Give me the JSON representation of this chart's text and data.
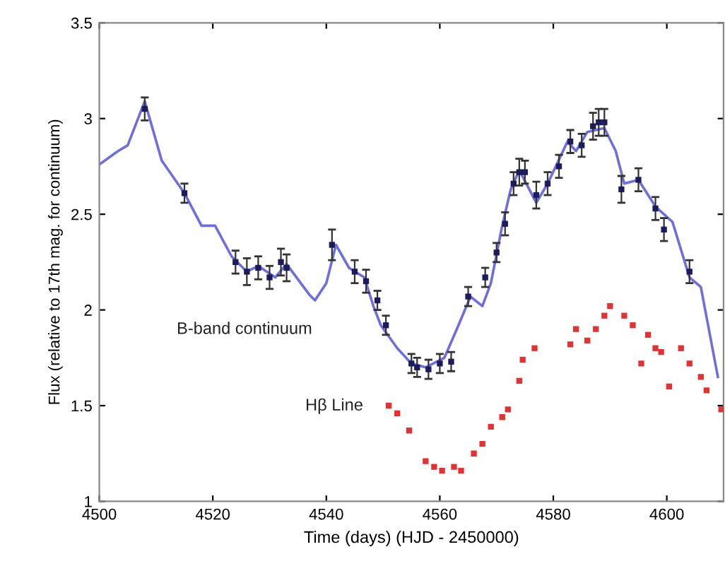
{
  "chart_data": {
    "type": "line",
    "xlabel": "Time (days) (HJD - 2450000)",
    "ylabel": "Flux (relative to 17th mag. for continuum)",
    "xlim": [
      4500,
      4610
    ],
    "xticks": [
      4500,
      4520,
      4540,
      4560,
      4580,
      4600
    ],
    "ylim": [
      1,
      3.5
    ],
    "yticks": [
      1,
      1.5,
      2,
      2.5,
      3,
      3.5
    ],
    "grid": false,
    "legend": false,
    "series": [
      {
        "name": "B-band continuum",
        "color": "#6f6fdc",
        "line_style": "solid",
        "marker": "none",
        "x": [
          4500,
          4503.3,
          4505,
          4508,
          4511,
          4515,
          4518,
          4520.4,
          4523.3,
          4526,
          4528,
          4531,
          4533,
          4537,
          4538,
          4540,
          4541.7,
          4544,
          4546.7,
          4548.3,
          4549.6,
          4552.5,
          4555,
          4557.5,
          4560.8,
          4563,
          4565.4,
          4567.5,
          4569,
          4571,
          4572.5,
          4574,
          4577,
          4579,
          4582.5,
          4584,
          4586,
          4589,
          4591,
          4592.5,
          4595,
          4598,
          4601,
          4604,
          4606,
          4609
        ],
        "values": [
          2.76,
          2.83,
          2.86,
          3.09,
          2.78,
          2.61,
          2.44,
          2.44,
          2.28,
          2.2,
          2.23,
          2.17,
          2.24,
          2.08,
          2.05,
          2.14,
          2.34,
          2.22,
          2.17,
          2.02,
          1.92,
          1.8,
          1.72,
          1.7,
          1.75,
          1.9,
          2.07,
          2.02,
          2.14,
          2.44,
          2.63,
          2.73,
          2.56,
          2.66,
          2.88,
          2.83,
          2.93,
          2.95,
          2.83,
          2.66,
          2.68,
          2.54,
          2.46,
          2.17,
          2.12,
          1.65
        ]
      },
      {
        "type": "scatter",
        "color": "#1c1c5a",
        "marker": "square",
        "x": [
          4508,
          4515,
          4524,
          4526,
          4528,
          4530,
          4532,
          4533,
          4541,
          4545,
          4547,
          4549,
          4550.5,
          4555,
          4556,
          4558,
          4560,
          4562,
          4565,
          4568,
          4570,
          4571.5,
          4573,
          4574,
          4575,
          4577,
          4579,
          4581,
          4583,
          4585,
          4587,
          4588,
          4589,
          4592,
          4595,
          4598,
          4599.5,
          4604
        ],
        "values": [
          3.05,
          2.61,
          2.25,
          2.2,
          2.22,
          2.17,
          2.25,
          2.22,
          2.34,
          2.2,
          2.15,
          2.05,
          1.92,
          1.72,
          1.7,
          1.69,
          1.72,
          1.73,
          2.07,
          2.17,
          2.3,
          2.45,
          2.66,
          2.72,
          2.72,
          2.6,
          2.66,
          2.75,
          2.88,
          2.86,
          2.96,
          2.98,
          2.98,
          2.63,
          2.68,
          2.53,
          2.42,
          2.2
        ],
        "errors": [
          0.06,
          0.05,
          0.06,
          0.07,
          0.06,
          0.06,
          0.07,
          0.07,
          0.08,
          0.06,
          0.06,
          0.05,
          0.05,
          0.05,
          0.05,
          0.05,
          0.05,
          0.05,
          0.05,
          0.05,
          0.05,
          0.06,
          0.06,
          0.07,
          0.06,
          0.07,
          0.06,
          0.06,
          0.06,
          0.06,
          0.07,
          0.07,
          0.07,
          0.07,
          0.06,
          0.06,
          0.06,
          0.06
        ]
      },
      {
        "name": "Hβ Line",
        "type": "scatter",
        "color": "#e03434",
        "marker": "square",
        "x": [
          4551,
          4552.5,
          4554.6,
          4557.5,
          4559,
          4560.4,
          4562.5,
          4563.75,
          4566,
          4567.5,
          4569,
          4571,
          4572,
          4574,
          4574.6,
          4576.7,
          4583,
          4584,
          4586,
          4587.5,
          4589,
          4590,
          4592.5,
          4594,
          4595.5,
          4596.7,
          4598,
          4599,
          4600.4,
          4602.5,
          4604,
          4606,
          4607,
          4609.6
        ],
        "values": [
          1.5,
          1.46,
          1.37,
          1.21,
          1.18,
          1.16,
          1.18,
          1.16,
          1.25,
          1.3,
          1.39,
          1.44,
          1.48,
          1.63,
          1.74,
          1.8,
          1.82,
          1.9,
          1.84,
          1.9,
          1.97,
          2.02,
          1.97,
          1.92,
          1.72,
          1.87,
          1.8,
          1.78,
          1.6,
          1.8,
          1.72,
          1.65,
          1.58,
          1.48
        ]
      }
    ]
  }
}
